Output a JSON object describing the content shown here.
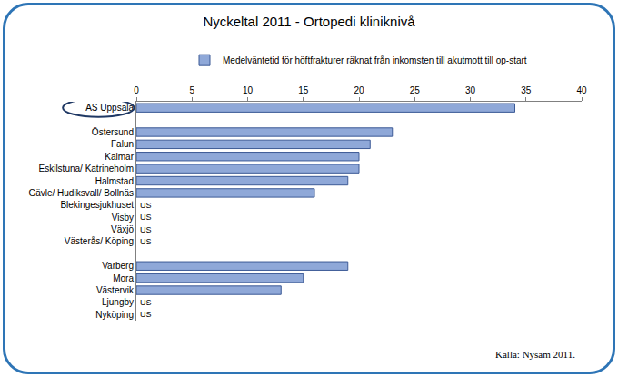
{
  "chart_data": {
    "type": "bar",
    "orientation": "horizontal",
    "title": "Nyckeltal 2011 - Ortopedi kliniknivå",
    "categories": [
      "AS Uppsala",
      null,
      "Östersund",
      "Falun",
      "Kalmar",
      "Eskilstuna/ Katrineholm",
      "Halmstad",
      "Gävle/ Hudiksvall/ Bollnäs",
      "Blekingesjukhuset",
      "Visby",
      "Växjö",
      "Västerås/ Köping",
      null,
      "Varberg",
      "Mora",
      "Västervik",
      "Ljungby",
      "Nyköping"
    ],
    "series": [
      {
        "name": "Medelväntetid för höftfrakturer räknat från inkomsten till akutmott till op-start",
        "color": "#8fa8d8",
        "values": [
          34,
          null,
          23,
          21,
          20,
          20,
          19,
          16,
          null,
          null,
          null,
          null,
          null,
          19,
          15,
          13,
          null,
          null
        ]
      }
    ],
    "xlim": [
      0,
      40
    ],
    "xticks": [
      0,
      5,
      10,
      15,
      20,
      25,
      30,
      35,
      40
    ],
    "grid": false,
    "legend": "top",
    "annotations": [
      {
        "category": "Blekingesjukhuset",
        "text": "US"
      },
      {
        "category": "Visby",
        "text": "US"
      },
      {
        "category": "Växjö",
        "text": "US"
      },
      {
        "category": "Västerås/ Köping",
        "text": "US"
      },
      {
        "category": "Ljungby",
        "text": "US"
      },
      {
        "category": "Nyköping",
        "text": "US"
      }
    ],
    "source": "Källa: Nysam 2011."
  }
}
